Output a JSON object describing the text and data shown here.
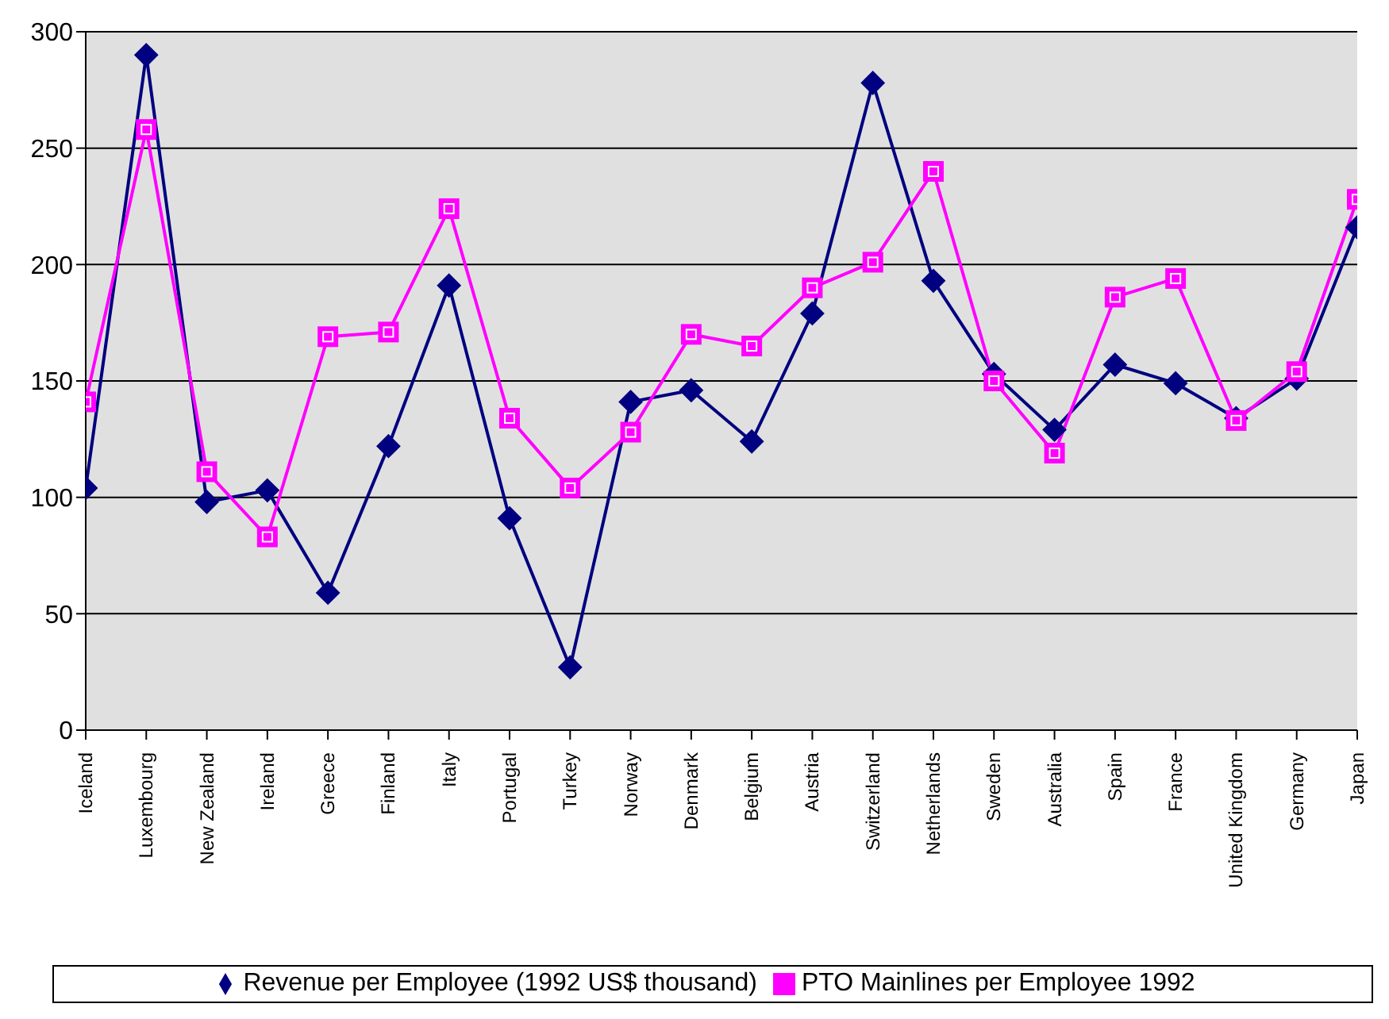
{
  "chart_data": {
    "type": "line",
    "categories": [
      "Iceland",
      "Luxembourg",
      "New Zealand",
      "Ireland",
      "Greece",
      "Finland",
      "Italy",
      "Portugal",
      "Turkey",
      "Norway",
      "Denmark",
      "Belgium",
      "Austria",
      "Switzerland",
      "Netherlands",
      "Sweden",
      "Australia",
      "Spain",
      "France",
      "United Kingdom",
      "Germany",
      "Japan"
    ],
    "series": [
      {
        "name": "Revenue per Employee (1992 US$ thousand)",
        "color": "#000080",
        "marker": "diamond",
        "values": [
          104,
          290,
          98,
          103,
          59,
          122,
          191,
          91,
          27,
          141,
          146,
          124,
          179,
          278,
          193,
          153,
          129,
          157,
          149,
          134,
          151,
          216
        ]
      },
      {
        "name": "PTO Mainlines per Employee 1992",
        "color": "#ff00ff",
        "marker": "square",
        "values": [
          141,
          258,
          111,
          83,
          169,
          171,
          224,
          134,
          104,
          128,
          170,
          165,
          190,
          201,
          240,
          150,
          119,
          186,
          194,
          133,
          154,
          228
        ]
      }
    ],
    "ylim": [
      0,
      300
    ],
    "yticks": [
      0,
      50,
      100,
      150,
      200,
      250,
      300
    ],
    "grid": "y",
    "legend": "bottom"
  }
}
